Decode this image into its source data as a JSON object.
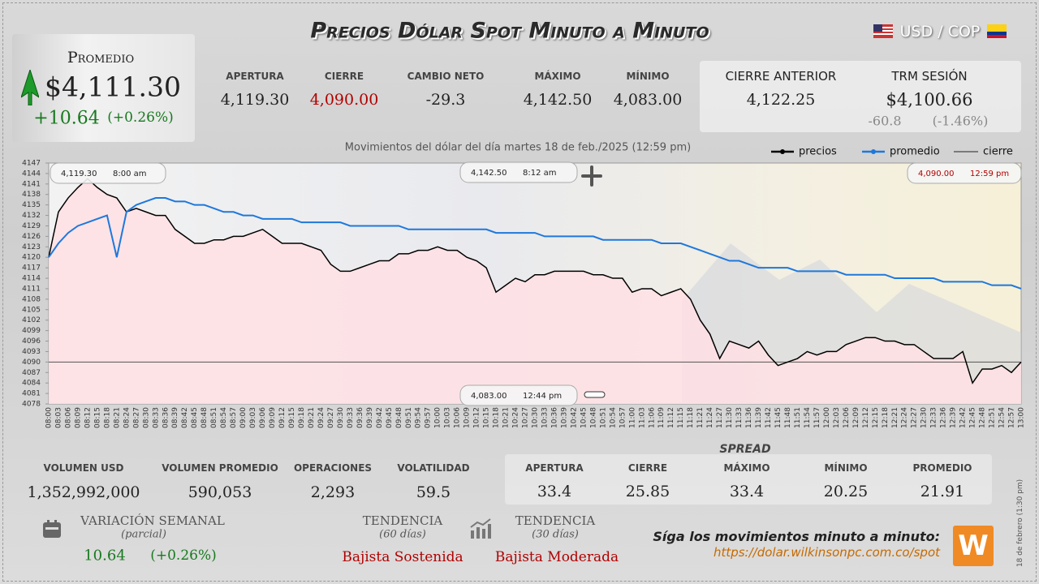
{
  "header": {
    "title": "Precios Dólar Spot Minuto a Minuto",
    "pair": "USD / COP"
  },
  "summary": {
    "label": "Promedio",
    "value": "$4,111.30",
    "change": "+10.64",
    "change_pct": "(+0.26%)"
  },
  "stats": [
    {
      "label": "APERTURA",
      "value": "4,119.30"
    },
    {
      "label": "CIERRE",
      "value": "4,090.00"
    },
    {
      "label": "CAMBIO NETO",
      "value": "-29.3"
    },
    {
      "label": "MÁXIMO",
      "value": "4,142.50"
    },
    {
      "label": "MÍNIMO",
      "value": "4,083.00"
    }
  ],
  "previous": {
    "close_label": "CIERRE ANTERIOR",
    "close_value": "4,122.25",
    "trm_label": "TRM SESIÓN",
    "trm_value": "$4,100.66",
    "trm_change": "-60.8",
    "trm_change_pct": "(-1.46%)"
  },
  "chart_data": {
    "type": "line",
    "title": "Movimientos del dólar del día martes 18 de feb./2025 (12:59 pm)",
    "categories": [
      "08:00",
      "08:03",
      "08:06",
      "08:09",
      "08:12",
      "08:15",
      "08:18",
      "08:21",
      "08:24",
      "08:27",
      "08:30",
      "08:33",
      "08:36",
      "08:39",
      "08:42",
      "08:45",
      "08:48",
      "08:51",
      "08:54",
      "08:57",
      "09:00",
      "09:03",
      "09:06",
      "09:09",
      "09:12",
      "09:15",
      "09:18",
      "09:21",
      "09:24",
      "09:27",
      "09:30",
      "09:33",
      "09:36",
      "09:39",
      "09:42",
      "09:45",
      "09:48",
      "09:51",
      "09:54",
      "09:57",
      "10:00",
      "10:03",
      "10:06",
      "10:09",
      "10:12",
      "10:15",
      "10:18",
      "10:21",
      "10:24",
      "10:27",
      "10:30",
      "10:33",
      "10:36",
      "10:39",
      "10:42",
      "10:45",
      "10:48",
      "10:51",
      "10:54",
      "10:57",
      "11:00",
      "11:03",
      "11:06",
      "11:09",
      "11:12",
      "11:15",
      "11:18",
      "11:21",
      "11:24",
      "11:27",
      "11:30",
      "11:33",
      "11:36",
      "11:39",
      "11:42",
      "11:45",
      "11:48",
      "11:51",
      "11:54",
      "11:57",
      "12:00",
      "12:03",
      "12:06",
      "12:09",
      "12:12",
      "12:15",
      "12:18",
      "12:21",
      "12:24",
      "12:27",
      "12:30",
      "12:33",
      "12:36",
      "12:39",
      "12:42",
      "12:45",
      "12:48",
      "12:51",
      "12:54",
      "12:57",
      "13:00"
    ],
    "series": [
      {
        "name": "precios",
        "color": "#000000",
        "fill": "#ffe1e4",
        "values": [
          4120,
          4133,
          4137,
          4140,
          4142.5,
          4140,
          4138,
          4137,
          4133,
          4134,
          4133,
          4132,
          4132,
          4128,
          4126,
          4124,
          4124,
          4125,
          4125,
          4126,
          4126,
          4127,
          4128,
          4126,
          4124,
          4124,
          4124,
          4123,
          4122,
          4118,
          4116,
          4116,
          4117,
          4118,
          4119,
          4119,
          4121,
          4121,
          4122,
          4122,
          4123,
          4122,
          4122,
          4120,
          4119,
          4117,
          4110,
          4112,
          4114,
          4113,
          4115,
          4115,
          4116,
          4116,
          4116,
          4116,
          4115,
          4115,
          4114,
          4114,
          4110,
          4111,
          4111,
          4109,
          4110,
          4111,
          4108,
          4102,
          4098,
          4091,
          4096,
          4095,
          4094,
          4096,
          4092,
          4089,
          4090,
          4091,
          4093,
          4092,
          4093,
          4093,
          4095,
          4096,
          4097,
          4097,
          4096,
          4096,
          4095,
          4095,
          4093,
          4091,
          4091,
          4091,
          4093,
          4084,
          4088,
          4088,
          4089,
          4087,
          4090
        ]
      },
      {
        "name": "promedio",
        "color": "#1e78dc",
        "values": [
          4120,
          4124,
          4127,
          4129,
          4130,
          4131,
          4132,
          4120,
          4133,
          4135,
          4136,
          4137,
          4137,
          4136,
          4136,
          4135,
          4135,
          4134,
          4133,
          4133,
          4132,
          4132,
          4131,
          4131,
          4131,
          4131,
          4130,
          4130,
          4130,
          4130,
          4130,
          4129,
          4129,
          4129,
          4129,
          4129,
          4129,
          4128,
          4128,
          4128,
          4128,
          4128,
          4128,
          4128,
          4128,
          4128,
          4127,
          4127,
          4127,
          4127,
          4127,
          4126,
          4126,
          4126,
          4126,
          4126,
          4126,
          4125,
          4125,
          4125,
          4125,
          4125,
          4125,
          4124,
          4124,
          4124,
          4123,
          4122,
          4121,
          4120,
          4119,
          4119,
          4118,
          4117,
          4117,
          4117,
          4117,
          4116,
          4116,
          4116,
          4116,
          4116,
          4115,
          4115,
          4115,
          4115,
          4115,
          4114,
          4114,
          4114,
          4114,
          4114,
          4113,
          4113,
          4113,
          4113,
          4113,
          4112,
          4112,
          4112,
          4111
        ]
      }
    ],
    "reference_line": {
      "name": "cierre",
      "value": 4090,
      "color": "#555555"
    },
    "ylim": [
      4078,
      4147
    ],
    "yticks": [
      4078,
      4081,
      4084,
      4087,
      4090,
      4093,
      4096,
      4099,
      4102,
      4105,
      4108,
      4111,
      4114,
      4117,
      4120,
      4123,
      4126,
      4129,
      4132,
      4135,
      4138,
      4141,
      4144,
      4147
    ],
    "grid": false,
    "annotations": [
      {
        "value": "4,119.30",
        "time": "8:00 am",
        "color": "#222222"
      },
      {
        "value": "4,142.50",
        "time": "8:12 am",
        "color": "#222222"
      },
      {
        "value": "4,090.00",
        "time": "12:59 pm",
        "color": "#b00000"
      },
      {
        "value": "4,083.00",
        "time": "12:44 pm",
        "color": "#222222"
      }
    ]
  },
  "volume_stats": [
    {
      "label": "VOLUMEN USD",
      "value": "1,352,992,000"
    },
    {
      "label": "VOLUMEN PROMEDIO",
      "value": "590,053"
    },
    {
      "label": "OPERACIONES",
      "value": "2,293"
    },
    {
      "label": "VOLATILIDAD",
      "value": "59.5"
    }
  ],
  "spread": {
    "title": "SPREAD",
    "items": [
      {
        "label": "APERTURA",
        "value": "33.4"
      },
      {
        "label": "CIERRE",
        "value": "25.85"
      },
      {
        "label": "MÁXIMO",
        "value": "33.4"
      },
      {
        "label": "MÍNIMO",
        "value": "20.25"
      },
      {
        "label": "PROMEDIO",
        "value": "21.91"
      }
    ]
  },
  "weekly": {
    "label": "VARIACIÓN SEMANAL",
    "note": "(parcial)",
    "change": "10.64",
    "change_pct": "(+0.26%)"
  },
  "trends": [
    {
      "label": "TENDENCIA",
      "period": "(60 días)",
      "value": "Bajista Sostenida"
    },
    {
      "label": "TENDENCIA",
      "period": "(30 días)",
      "value": "Bajista Moderada"
    }
  ],
  "footer": {
    "text": "Síga los movimientos minuto a minuto:",
    "url": "https://dolar.wilkinsonpc.com.co/spot",
    "side_note": "18 de febrero (1:30 pm)",
    "logo": "W"
  }
}
